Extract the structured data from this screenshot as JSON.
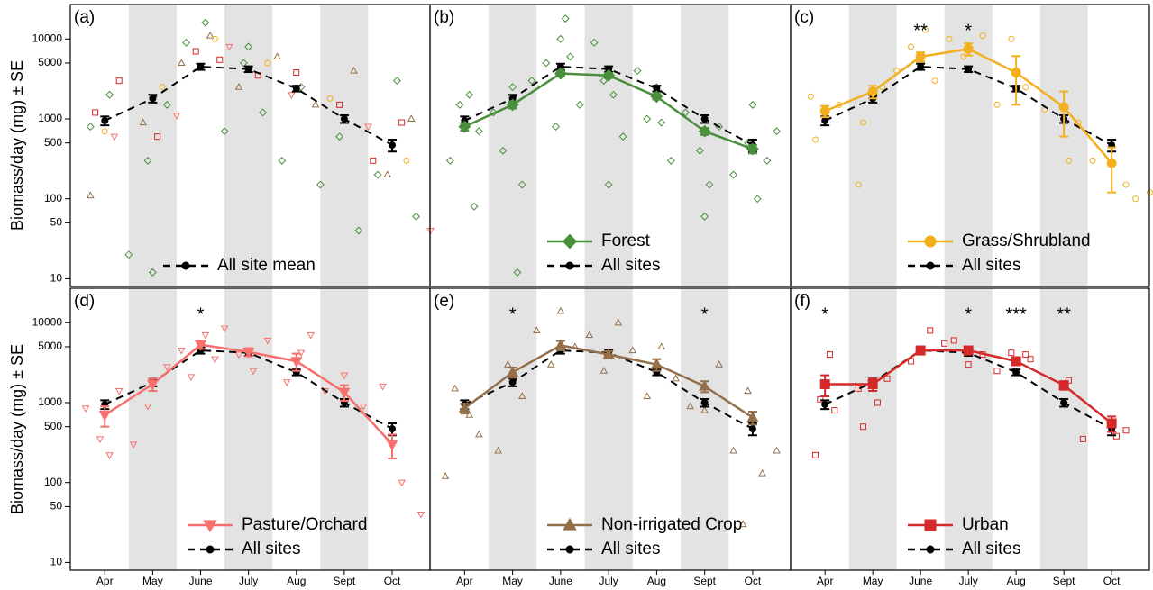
{
  "chart_data": [
    {
      "type": "line",
      "title": "(a)",
      "ylabel": "Biomass/day (mg) ± SE",
      "log_y": true,
      "ylim": [
        8,
        27000
      ],
      "xlim": [
        -0.72,
        6.79
      ],
      "yticks": [
        10,
        50,
        100,
        500,
        1000,
        5000,
        10000
      ],
      "legend": "bottom",
      "series": [
        {
          "name": "All site mean",
          "color": "#000000",
          "marker": "circle",
          "dash": true,
          "values": [
            950,
            1800,
            4500,
            4200,
            2400,
            1000,
            470
          ],
          "errors": [
            120,
            200,
            400,
            350,
            200,
            110,
            80
          ]
        }
      ],
      "points": [
        {
          "color": "#4a8f3c",
          "marker": "diamond",
          "x": [
            -0.3,
            0.1,
            0.5,
            0.9,
            1.3,
            1.7,
            2.1,
            2.5,
            2.9,
            3.3,
            3.7,
            4.1,
            4.5,
            4.9,
            5.3,
            5.7,
            6.1,
            6.5,
            1.0,
            3.0
          ],
          "y": [
            800,
            2000,
            20,
            300,
            1500,
            9000,
            16000,
            700,
            5000,
            1200,
            300,
            2500,
            150,
            600,
            40,
            200,
            3000,
            60,
            12,
            8000
          ]
        },
        {
          "color": "#d62a2a",
          "marker": "square",
          "x": [
            -0.2,
            0.3,
            1.1,
            1.9,
            2.4,
            3.2,
            4.0,
            4.9,
            5.6,
            6.2
          ],
          "y": [
            1200,
            3000,
            600,
            7000,
            5500,
            3500,
            3800,
            1500,
            300,
            900
          ]
        },
        {
          "color": "#94704a",
          "marker": "triangle",
          "x": [
            -0.3,
            0.8,
            1.6,
            2.2,
            2.8,
            3.6,
            4.4,
            5.2,
            5.9,
            6.4
          ],
          "y": [
            110,
            900,
            5000,
            11000,
            2500,
            6000,
            1500,
            4000,
            200,
            1000
          ]
        },
        {
          "color": "#f2b01e",
          "marker": "circle",
          "x": [
            0.0,
            1.2,
            2.3,
            3.4,
            4.7,
            6.3
          ],
          "y": [
            700,
            2500,
            10000,
            5000,
            1800,
            300
          ]
        },
        {
          "color": "#f7706e",
          "marker": "triangle-down",
          "x": [
            0.2,
            1.5,
            2.6,
            3.9,
            5.5,
            6.8
          ],
          "y": [
            600,
            1100,
            8000,
            2000,
            800,
            40
          ]
        }
      ]
    },
    {
      "type": "line",
      "title": "(b)",
      "log_y": true,
      "ylim": [
        8,
        27000
      ],
      "xlim": [
        -0.72,
        6.79
      ],
      "legend": "bottom",
      "series": [
        {
          "name": "Forest",
          "color": "#4a8f3c",
          "marker": "diamond",
          "dash": false,
          "values": [
            800,
            1500,
            3700,
            3500,
            1900,
            700,
            420
          ],
          "errors": [
            90,
            150,
            300,
            250,
            150,
            70,
            50
          ]
        },
        {
          "name": "All sites",
          "color": "#000000",
          "marker": "circle",
          "dash": true,
          "values": [
            950,
            1800,
            4500,
            4200,
            2400,
            1000,
            470
          ],
          "errors": [
            120,
            200,
            400,
            350,
            200,
            110,
            80
          ]
        }
      ],
      "points": [
        {
          "color": "#4a8f3c",
          "marker": "diamond",
          "x": [
            -0.3,
            -0.1,
            0.2,
            0.3,
            0.6,
            0.8,
            1.0,
            1.2,
            1.4,
            1.7,
            1.9,
            2.0,
            2.2,
            2.4,
            2.7,
            2.9,
            3.1,
            3.3,
            3.6,
            3.8,
            4.0,
            4.3,
            4.6,
            4.9,
            5.1,
            5.3,
            5.6,
            5.9,
            6.1,
            6.3,
            6.5,
            0.1,
            1.1,
            2.1,
            3.0,
            4.1,
            5.0,
            6.0
          ],
          "y": [
            300,
            1500,
            80,
            700,
            1200,
            400,
            2500,
            150,
            3000,
            5000,
            800,
            10000,
            6000,
            1500,
            9000,
            3000,
            2000,
            600,
            4000,
            1000,
            2500,
            300,
            1200,
            400,
            150,
            800,
            200,
            500,
            100,
            300,
            700,
            2000,
            12,
            18000,
            150,
            900,
            60,
            1500
          ]
        }
      ]
    },
    {
      "type": "line",
      "title": "(c)",
      "log_y": true,
      "ylim": [
        8,
        27000
      ],
      "xlim": [
        -0.72,
        6.79
      ],
      "legend": "bottom",
      "significance": [
        null,
        null,
        "**",
        "*",
        null,
        null,
        null
      ],
      "series": [
        {
          "name": "Grass/Shrubland",
          "color": "#f2b01e",
          "marker": "circle",
          "dash": false,
          "values": [
            1250,
            2200,
            6000,
            7500,
            3800,
            1400,
            280
          ],
          "errors": [
            200,
            400,
            800,
            1300,
            2300,
            800,
            160
          ]
        },
        {
          "name": "All sites",
          "color": "#000000",
          "marker": "circle",
          "dash": true,
          "values": [
            950,
            1800,
            4500,
            4200,
            2400,
            1000,
            470
          ],
          "errors": [
            120,
            200,
            400,
            350,
            200,
            110,
            80
          ]
        }
      ],
      "points": [
        {
          "color": "#f2b01e",
          "marker": "circle",
          "x": [
            -0.3,
            -0.2,
            0.0,
            0.3,
            0.7,
            0.8,
            1.2,
            1.5,
            1.8,
            2.1,
            2.3,
            2.6,
            2.9,
            3.3,
            3.6,
            3.9,
            4.2,
            4.6,
            5.1,
            5.3,
            5.6,
            6.3,
            6.5,
            6.8
          ],
          "y": [
            1900,
            550,
            1000,
            1500,
            150,
            900,
            2500,
            4000,
            8000,
            13000,
            3000,
            10000,
            6000,
            11000,
            1500,
            10000,
            2500,
            1300,
            300,
            900,
            300,
            150,
            100,
            120
          ]
        }
      ]
    },
    {
      "type": "line",
      "title": "(d)",
      "ylabel": "Biomass/day (mg) ± SE",
      "log_y": true,
      "ylim": [
        8,
        27000
      ],
      "xlim": [
        -0.72,
        6.79
      ],
      "yticks": [
        10,
        50,
        100,
        500,
        1000,
        5000,
        10000
      ],
      "legend": "bottom",
      "categories": [
        "Apr",
        "May",
        "June",
        "July",
        "Aug",
        "Sept",
        "Oct"
      ],
      "significance": [
        null,
        null,
        "*",
        null,
        null,
        null,
        null
      ],
      "series": [
        {
          "name": "Pasture/Orchard",
          "color": "#f7706e",
          "marker": "triangle-down",
          "dash": false,
          "values": [
            700,
            1700,
            5300,
            4300,
            3300,
            1350,
            300
          ],
          "errors": [
            200,
            300,
            600,
            500,
            800,
            300,
            100
          ]
        },
        {
          "name": "All sites",
          "color": "#000000",
          "marker": "circle",
          "dash": true,
          "values": [
            950,
            1800,
            4500,
            4200,
            2400,
            1000,
            470
          ],
          "errors": [
            120,
            200,
            400,
            350,
            200,
            110,
            80
          ]
        }
      ],
      "points": [
        {
          "color": "#f7706e",
          "marker": "triangle-down",
          "x": [
            -0.4,
            -0.1,
            0.1,
            0.3,
            0.6,
            0.9,
            1.3,
            1.6,
            1.8,
            2.1,
            2.3,
            2.5,
            2.8,
            3.1,
            3.4,
            3.8,
            4.1,
            4.3,
            4.6,
            5.0,
            5.4,
            5.8,
            6.2,
            6.6
          ],
          "y": [
            850,
            350,
            220,
            1400,
            300,
            900,
            2800,
            4500,
            2100,
            7000,
            3500,
            8500,
            4000,
            2500,
            6000,
            1800,
            4200,
            7000,
            1400,
            2200,
            900,
            1600,
            100,
            40
          ]
        }
      ]
    },
    {
      "type": "line",
      "title": "(e)",
      "log_y": true,
      "ylim": [
        8,
        27000
      ],
      "xlim": [
        -0.72,
        6.79
      ],
      "legend": "bottom",
      "categories": [
        "Apr",
        "May",
        "June",
        "July",
        "Aug",
        "Sept",
        "Oct"
      ],
      "significance": [
        null,
        "*",
        null,
        null,
        null,
        "*",
        null
      ],
      "series": [
        {
          "name": "Non-irrigated Crop",
          "color": "#94704a",
          "marker": "triangle",
          "dash": false,
          "values": [
            850,
            2400,
            5200,
            4000,
            3000,
            1600,
            650
          ],
          "errors": [
            120,
            350,
            700,
            400,
            500,
            250,
            120
          ]
        },
        {
          "name": "All sites",
          "color": "#000000",
          "marker": "circle",
          "dash": true,
          "values": [
            950,
            1800,
            4500,
            4200,
            2400,
            1000,
            470
          ],
          "errors": [
            120,
            200,
            400,
            350,
            200,
            110,
            80
          ]
        }
      ],
      "points": [
        {
          "color": "#94704a",
          "marker": "triangle",
          "x": [
            -0.4,
            -0.2,
            0.1,
            0.3,
            0.7,
            0.9,
            1.2,
            1.5,
            1.8,
            2.0,
            2.3,
            2.6,
            2.9,
            3.2,
            3.5,
            3.8,
            4.1,
            4.4,
            4.7,
            5.0,
            5.3,
            5.6,
            5.9,
            6.2,
            6.5,
            5.8
          ],
          "y": [
            120,
            1500,
            700,
            400,
            250,
            3000,
            1200,
            8000,
            3000,
            14000,
            5000,
            7000,
            2500,
            10000,
            4500,
            1200,
            5000,
            2000,
            900,
            800,
            3000,
            250,
            1400,
            130,
            250,
            30
          ]
        }
      ]
    },
    {
      "type": "line",
      "title": "(f)",
      "log_y": true,
      "ylim": [
        8,
        27000
      ],
      "xlim": [
        -0.72,
        6.79
      ],
      "legend": "bottom",
      "categories": [
        "Apr",
        "May",
        "June",
        "July",
        "Aug",
        "Sept",
        "Oct"
      ],
      "significance": [
        "*",
        null,
        null,
        "*",
        "***",
        "**",
        null
      ],
      "series": [
        {
          "name": "Urban",
          "color": "#d62a2a",
          "marker": "square",
          "dash": false,
          "values": [
            1700,
            1700,
            4500,
            4500,
            3300,
            1650,
            550
          ],
          "errors": [
            500,
            300,
            500,
            400,
            250,
            200,
            120
          ]
        },
        {
          "name": "All sites",
          "color": "#000000",
          "marker": "circle",
          "dash": true,
          "values": [
            950,
            1800,
            4500,
            4200,
            2400,
            1000,
            470
          ],
          "errors": [
            120,
            200,
            400,
            350,
            200,
            110,
            80
          ]
        }
      ],
      "points": [
        {
          "color": "#d62a2a",
          "marker": "square",
          "x": [
            -0.2,
            -0.1,
            0.1,
            0.2,
            0.7,
            0.8,
            1.1,
            1.3,
            1.8,
            2.2,
            2.5,
            2.7,
            3.0,
            3.3,
            3.6,
            3.9,
            4.2,
            4.3,
            5.1,
            5.4,
            6.3,
            6.1
          ],
          "y": [
            220,
            1100,
            4000,
            800,
            1500,
            500,
            1000,
            2000,
            3300,
            8000,
            5500,
            6000,
            3000,
            4000,
            2500,
            4200,
            4000,
            3500,
            1900,
            350,
            450,
            380
          ]
        }
      ]
    }
  ]
}
